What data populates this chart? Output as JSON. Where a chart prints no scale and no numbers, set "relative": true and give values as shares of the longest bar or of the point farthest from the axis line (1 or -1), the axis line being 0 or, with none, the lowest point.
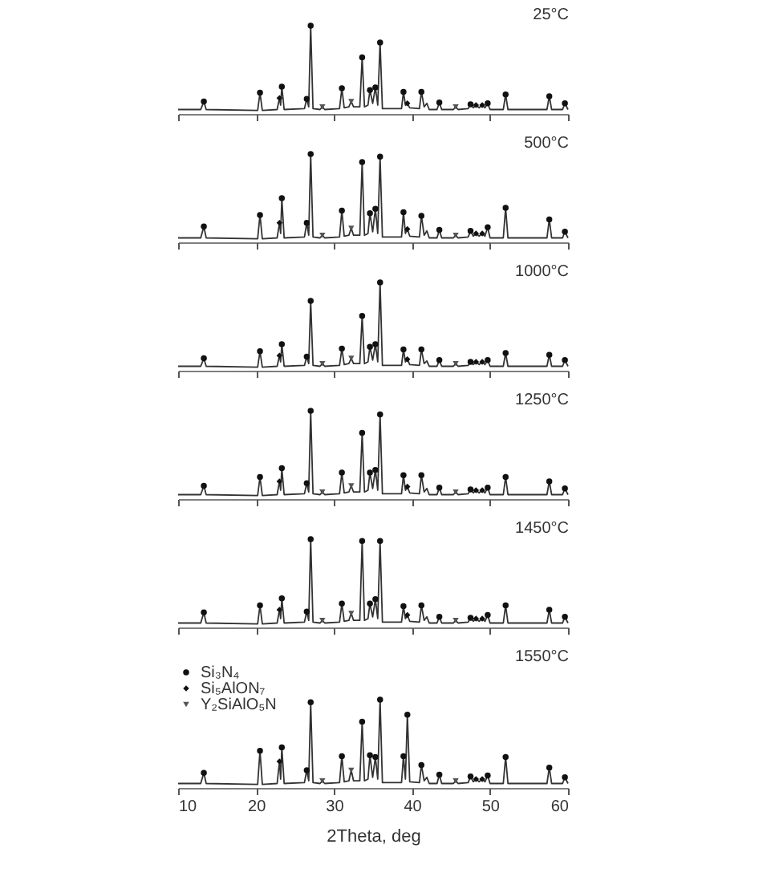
{
  "chart_data": [
    {
      "type": "line",
      "title": "25°C",
      "relative": true,
      "xlim": [
        10,
        60
      ],
      "xticks": [
        10,
        20,
        30,
        40,
        50,
        60
      ],
      "tick_labels": false,
      "x": [
        10,
        12.9,
        13.3,
        13.6,
        20.2,
        20.5,
        20.8,
        22.7,
        23.0,
        23.15,
        23.3,
        23.6,
        26.2,
        26.5,
        26.75,
        27.0,
        27.3,
        28.2,
        28.5,
        28.8,
        30.7,
        31.0,
        31.3,
        31.9,
        32.2,
        32.5,
        33.3,
        33.6,
        33.9,
        34.35,
        34.6,
        34.95,
        35.3,
        35.6,
        35.9,
        36.2,
        38.65,
        38.9,
        39.15,
        39.4,
        39.7,
        40.95,
        41.2,
        41.55,
        41.9,
        42.2,
        43.2,
        43.5,
        43.8,
        45.3,
        45.6,
        45.9,
        47.2,
        47.5,
        47.85,
        48.2,
        48.6,
        49.0,
        49.35,
        49.7,
        50.0,
        51.7,
        52.0,
        52.3,
        57.3,
        57.6,
        57.9,
        59.3,
        59.6,
        60
      ],
      "series": [
        {
          "color": "#333333",
          "values": [
            0.05,
            0.05,
            0.14,
            0.05,
            0.04,
            0.24,
            0.04,
            0.05,
            0.18,
            0.1,
            0.31,
            0.05,
            0.06,
            0.17,
            0.08,
            1.0,
            0.06,
            0.05,
            0.08,
            0.05,
            0.06,
            0.29,
            0.07,
            0.08,
            0.14,
            0.08,
            0.08,
            0.64,
            0.08,
            0.1,
            0.27,
            0.12,
            0.3,
            0.1,
            0.81,
            0.06,
            0.06,
            0.25,
            0.1,
            0.12,
            0.07,
            0.06,
            0.25,
            0.08,
            0.12,
            0.05,
            0.05,
            0.13,
            0.05,
            0.05,
            0.08,
            0.05,
            0.06,
            0.11,
            0.07,
            0.1,
            0.07,
            0.1,
            0.07,
            0.12,
            0.05,
            0.05,
            0.22,
            0.05,
            0.05,
            0.2,
            0.05,
            0.05,
            0.12,
            0.05
          ]
        },
        {
          "type": "scatter",
          "marker": "circle",
          "color": "#111111",
          "x": [
            13.3,
            20.5,
            23.3,
            26.5,
            27.0,
            31.0,
            33.6,
            34.6,
            35.3,
            35.9,
            38.9,
            41.2,
            43.5,
            47.5,
            49.7,
            52.0,
            57.6,
            59.6
          ],
          "values": [
            0.14,
            0.24,
            0.31,
            0.17,
            1.0,
            0.29,
            0.64,
            0.27,
            0.3,
            0.81,
            0.25,
            0.25,
            0.13,
            0.11,
            0.12,
            0.22,
            0.2,
            0.12
          ]
        },
        {
          "type": "scatter",
          "marker": "diamond",
          "color": "#111111",
          "x": [
            23.0,
            39.4,
            48.2,
            49.0
          ],
          "values": [
            0.18,
            0.12,
            0.1,
            0.1
          ]
        },
        {
          "type": "scatter",
          "marker": "triangle",
          "color": "#555555",
          "x": [
            28.5,
            32.2,
            45.6
          ],
          "values": [
            0.08,
            0.14,
            0.08
          ]
        }
      ]
    },
    {
      "type": "line",
      "title": "500°C",
      "relative": true,
      "xlim": [
        10,
        60
      ],
      "xticks": [
        10,
        20,
        30,
        40,
        50,
        60
      ],
      "tick_labels": false,
      "x": [
        10,
        12.9,
        13.3,
        13.6,
        20.2,
        20.5,
        20.8,
        22.7,
        23.0,
        23.15,
        23.3,
        23.6,
        26.2,
        26.5,
        26.75,
        27.0,
        27.3,
        28.2,
        28.5,
        28.8,
        30.7,
        31.0,
        31.3,
        31.9,
        32.2,
        32.5,
        33.3,
        33.6,
        33.9,
        34.35,
        34.6,
        34.95,
        35.3,
        35.6,
        35.9,
        36.2,
        38.65,
        38.9,
        39.15,
        39.4,
        39.7,
        40.95,
        41.2,
        41.55,
        41.9,
        42.2,
        43.2,
        43.5,
        43.8,
        45.3,
        45.6,
        45.9,
        47.2,
        47.5,
        47.85,
        48.2,
        48.6,
        49.0,
        49.35,
        49.7,
        50.0,
        51.7,
        52.0,
        52.3,
        57.3,
        57.6,
        57.9,
        59.3,
        59.6,
        60
      ],
      "series": [
        {
          "color": "#333333",
          "values": [
            0.05,
            0.05,
            0.18,
            0.05,
            0.04,
            0.31,
            0.04,
            0.05,
            0.22,
            0.1,
            0.5,
            0.05,
            0.06,
            0.22,
            0.08,
            1.0,
            0.06,
            0.05,
            0.08,
            0.05,
            0.06,
            0.36,
            0.07,
            0.08,
            0.16,
            0.08,
            0.08,
            0.91,
            0.08,
            0.1,
            0.33,
            0.12,
            0.38,
            0.1,
            0.97,
            0.06,
            0.06,
            0.34,
            0.1,
            0.15,
            0.07,
            0.06,
            0.3,
            0.08,
            0.13,
            0.05,
            0.05,
            0.14,
            0.05,
            0.05,
            0.08,
            0.05,
            0.06,
            0.13,
            0.07,
            0.1,
            0.07,
            0.1,
            0.07,
            0.17,
            0.05,
            0.05,
            0.39,
            0.05,
            0.05,
            0.26,
            0.05,
            0.05,
            0.12,
            0.05
          ]
        },
        {
          "type": "scatter",
          "marker": "circle",
          "color": "#111111",
          "x": [
            13.3,
            20.5,
            23.3,
            26.5,
            27.0,
            31.0,
            33.6,
            34.6,
            35.3,
            35.9,
            38.9,
            41.2,
            43.5,
            47.5,
            49.7,
            52.0,
            57.6,
            59.6
          ],
          "values": [
            0.18,
            0.31,
            0.5,
            0.22,
            1.0,
            0.36,
            0.91,
            0.33,
            0.38,
            0.97,
            0.34,
            0.3,
            0.14,
            0.13,
            0.17,
            0.39,
            0.26,
            0.12
          ]
        },
        {
          "type": "scatter",
          "marker": "diamond",
          "color": "#111111",
          "x": [
            23.0,
            39.4,
            48.2,
            49.0
          ],
          "values": [
            0.22,
            0.15,
            0.1,
            0.1
          ]
        },
        {
          "type": "scatter",
          "marker": "triangle",
          "color": "#555555",
          "x": [
            28.5,
            32.2,
            45.6
          ],
          "values": [
            0.08,
            0.16,
            0.08
          ]
        }
      ]
    },
    {
      "type": "line",
      "title": "1000°C",
      "relative": true,
      "xlim": [
        10,
        60
      ],
      "xticks": [
        10,
        20,
        30,
        40,
        50,
        60
      ],
      "tick_labels": false,
      "x": [
        10,
        12.9,
        13.3,
        13.6,
        20.2,
        20.5,
        20.8,
        22.7,
        23.0,
        23.15,
        23.3,
        23.6,
        26.2,
        26.5,
        26.75,
        27.0,
        27.3,
        28.2,
        28.5,
        28.8,
        30.7,
        31.0,
        31.3,
        31.9,
        32.2,
        32.5,
        33.3,
        33.6,
        33.9,
        34.35,
        34.6,
        34.95,
        35.3,
        35.6,
        35.9,
        36.2,
        38.65,
        38.9,
        39.15,
        39.4,
        39.7,
        40.95,
        41.2,
        41.55,
        41.9,
        42.2,
        43.2,
        43.5,
        43.8,
        45.3,
        45.6,
        45.9,
        47.2,
        47.5,
        47.85,
        48.2,
        48.6,
        49.0,
        49.35,
        49.7,
        50.0,
        51.7,
        52.0,
        52.3,
        57.3,
        57.6,
        57.9,
        59.3,
        59.6,
        60
      ],
      "series": [
        {
          "color": "#333333",
          "values": [
            0.05,
            0.05,
            0.14,
            0.05,
            0.04,
            0.22,
            0.04,
            0.05,
            0.17,
            0.1,
            0.3,
            0.05,
            0.06,
            0.16,
            0.08,
            0.79,
            0.06,
            0.05,
            0.08,
            0.05,
            0.06,
            0.25,
            0.07,
            0.08,
            0.14,
            0.08,
            0.08,
            0.62,
            0.08,
            0.1,
            0.27,
            0.12,
            0.3,
            0.1,
            1.0,
            0.06,
            0.06,
            0.24,
            0.1,
            0.13,
            0.07,
            0.06,
            0.24,
            0.08,
            0.11,
            0.05,
            0.05,
            0.12,
            0.05,
            0.05,
            0.08,
            0.05,
            0.06,
            0.1,
            0.07,
            0.1,
            0.07,
            0.1,
            0.07,
            0.12,
            0.05,
            0.05,
            0.2,
            0.05,
            0.05,
            0.18,
            0.05,
            0.05,
            0.12,
            0.05
          ]
        },
        {
          "type": "scatter",
          "marker": "circle",
          "color": "#111111",
          "x": [
            13.3,
            20.5,
            23.3,
            26.5,
            27.0,
            31.0,
            33.6,
            34.6,
            35.3,
            35.9,
            38.9,
            41.2,
            43.5,
            47.5,
            49.7,
            52.0,
            57.6,
            59.6
          ],
          "values": [
            0.14,
            0.22,
            0.3,
            0.16,
            0.79,
            0.25,
            0.62,
            0.27,
            0.3,
            1.0,
            0.24,
            0.24,
            0.12,
            0.1,
            0.12,
            0.2,
            0.18,
            0.12
          ]
        },
        {
          "type": "scatter",
          "marker": "diamond",
          "color": "#111111",
          "x": [
            23.0,
            39.4,
            48.2,
            49.0
          ],
          "values": [
            0.17,
            0.13,
            0.1,
            0.1
          ]
        },
        {
          "type": "scatter",
          "marker": "triangle",
          "color": "#555555",
          "x": [
            28.5,
            32.2,
            45.6
          ],
          "values": [
            0.08,
            0.14,
            0.08
          ]
        }
      ]
    },
    {
      "type": "line",
      "title": "1250°C",
      "relative": true,
      "xlim": [
        10,
        60
      ],
      "xticks": [
        10,
        20,
        30,
        40,
        50,
        60
      ],
      "tick_labels": false,
      "x": [
        10,
        12.9,
        13.3,
        13.6,
        20.2,
        20.5,
        20.8,
        22.7,
        23.0,
        23.15,
        23.3,
        23.6,
        26.2,
        26.5,
        26.75,
        27.0,
        27.3,
        28.2,
        28.5,
        28.8,
        30.7,
        31.0,
        31.3,
        31.9,
        32.2,
        32.5,
        33.3,
        33.6,
        33.9,
        34.35,
        34.6,
        34.95,
        35.3,
        35.6,
        35.9,
        36.2,
        38.65,
        38.9,
        39.15,
        39.4,
        39.7,
        40.95,
        41.2,
        41.55,
        41.9,
        42.2,
        43.2,
        43.5,
        43.8,
        45.3,
        45.6,
        45.9,
        47.2,
        47.5,
        47.85,
        48.2,
        48.6,
        49.0,
        49.35,
        49.7,
        50.0,
        51.7,
        52.0,
        52.3,
        57.3,
        57.6,
        57.9,
        59.3,
        59.6,
        60
      ],
      "series": [
        {
          "color": "#333333",
          "values": [
            0.05,
            0.05,
            0.15,
            0.05,
            0.04,
            0.25,
            0.04,
            0.05,
            0.2,
            0.1,
            0.35,
            0.05,
            0.06,
            0.18,
            0.08,
            1.0,
            0.06,
            0.05,
            0.08,
            0.05,
            0.06,
            0.3,
            0.07,
            0.08,
            0.15,
            0.08,
            0.08,
            0.75,
            0.08,
            0.1,
            0.3,
            0.12,
            0.33,
            0.1,
            0.96,
            0.06,
            0.06,
            0.27,
            0.1,
            0.14,
            0.07,
            0.06,
            0.27,
            0.08,
            0.12,
            0.05,
            0.05,
            0.13,
            0.05,
            0.05,
            0.08,
            0.05,
            0.06,
            0.11,
            0.07,
            0.1,
            0.07,
            0.1,
            0.07,
            0.13,
            0.05,
            0.05,
            0.25,
            0.05,
            0.05,
            0.2,
            0.05,
            0.05,
            0.12,
            0.05
          ]
        },
        {
          "type": "scatter",
          "marker": "circle",
          "color": "#111111",
          "x": [
            13.3,
            20.5,
            23.3,
            26.5,
            27.0,
            31.0,
            33.6,
            34.6,
            35.3,
            35.9,
            38.9,
            41.2,
            43.5,
            47.5,
            49.7,
            52.0,
            57.6,
            59.6
          ],
          "values": [
            0.15,
            0.25,
            0.35,
            0.18,
            1.0,
            0.3,
            0.75,
            0.3,
            0.33,
            0.96,
            0.27,
            0.27,
            0.13,
            0.11,
            0.13,
            0.25,
            0.2,
            0.12
          ]
        },
        {
          "type": "scatter",
          "marker": "diamond",
          "color": "#111111",
          "x": [
            23.0,
            39.4,
            48.2,
            49.0
          ],
          "values": [
            0.2,
            0.14,
            0.1,
            0.1
          ]
        },
        {
          "type": "scatter",
          "marker": "triangle",
          "color": "#555555",
          "x": [
            28.5,
            32.2,
            45.6
          ],
          "values": [
            0.08,
            0.15,
            0.08
          ]
        }
      ]
    },
    {
      "type": "line",
      "title": "1450°C",
      "relative": true,
      "xlim": [
        10,
        60
      ],
      "xticks": [
        10,
        20,
        30,
        40,
        50,
        60
      ],
      "tick_labels": false,
      "x": [
        10,
        12.9,
        13.3,
        13.6,
        20.2,
        20.5,
        20.8,
        22.7,
        23.0,
        23.15,
        23.3,
        23.6,
        26.2,
        26.5,
        26.75,
        27.0,
        27.3,
        28.2,
        28.5,
        28.8,
        30.7,
        31.0,
        31.3,
        31.9,
        32.2,
        32.5,
        33.3,
        33.6,
        33.9,
        34.35,
        34.6,
        34.95,
        35.3,
        35.6,
        35.9,
        36.2,
        38.65,
        38.9,
        39.15,
        39.4,
        39.7,
        40.95,
        41.2,
        41.55,
        41.9,
        42.2,
        43.2,
        43.5,
        43.8,
        45.3,
        45.6,
        45.9,
        47.2,
        47.5,
        47.85,
        48.2,
        48.6,
        49.0,
        49.35,
        49.7,
        50.0,
        51.7,
        52.0,
        52.3,
        57.3,
        57.6,
        57.9,
        59.3,
        59.6,
        60
      ],
      "series": [
        {
          "color": "#333333",
          "values": [
            0.05,
            0.05,
            0.17,
            0.05,
            0.04,
            0.25,
            0.04,
            0.05,
            0.2,
            0.1,
            0.33,
            0.05,
            0.06,
            0.18,
            0.08,
            1.0,
            0.06,
            0.05,
            0.08,
            0.05,
            0.06,
            0.27,
            0.07,
            0.08,
            0.16,
            0.08,
            0.08,
            0.98,
            0.08,
            0.1,
            0.27,
            0.12,
            0.32,
            0.1,
            0.98,
            0.06,
            0.06,
            0.24,
            0.1,
            0.14,
            0.07,
            0.06,
            0.25,
            0.08,
            0.12,
            0.05,
            0.05,
            0.12,
            0.05,
            0.05,
            0.08,
            0.05,
            0.06,
            0.11,
            0.07,
            0.1,
            0.07,
            0.1,
            0.07,
            0.14,
            0.05,
            0.05,
            0.25,
            0.05,
            0.05,
            0.2,
            0.05,
            0.05,
            0.12,
            0.05
          ]
        },
        {
          "type": "scatter",
          "marker": "circle",
          "color": "#111111",
          "x": [
            13.3,
            20.5,
            23.3,
            26.5,
            27.0,
            31.0,
            33.6,
            34.6,
            35.3,
            35.9,
            38.9,
            41.2,
            43.5,
            47.5,
            49.7,
            52.0,
            57.6,
            59.6
          ],
          "values": [
            0.17,
            0.25,
            0.33,
            0.18,
            1.0,
            0.27,
            0.98,
            0.27,
            0.32,
            0.98,
            0.24,
            0.25,
            0.12,
            0.11,
            0.14,
            0.25,
            0.2,
            0.12
          ]
        },
        {
          "type": "scatter",
          "marker": "diamond",
          "color": "#111111",
          "x": [
            23.0,
            39.4,
            48.2,
            49.0
          ],
          "values": [
            0.2,
            0.14,
            0.1,
            0.1
          ]
        },
        {
          "type": "scatter",
          "marker": "triangle",
          "color": "#555555",
          "x": [
            28.5,
            32.2,
            45.6
          ],
          "values": [
            0.08,
            0.16,
            0.08
          ]
        }
      ]
    },
    {
      "type": "line",
      "title": "1550°C",
      "relative": true,
      "xlim": [
        10,
        60
      ],
      "xticks": [
        10,
        20,
        30,
        40,
        50,
        60
      ],
      "xlabel": "2Theta, deg",
      "legend": "top left",
      "x": [
        10,
        12.9,
        13.3,
        13.6,
        20.2,
        20.5,
        20.8,
        22.7,
        23.0,
        23.15,
        23.3,
        23.6,
        26.2,
        26.5,
        26.75,
        27.0,
        27.3,
        28.2,
        28.5,
        28.8,
        30.7,
        31.0,
        31.3,
        31.9,
        32.2,
        32.5,
        33.3,
        33.6,
        33.9,
        34.35,
        34.6,
        34.95,
        35.3,
        35.6,
        35.9,
        36.2,
        38.65,
        38.9,
        39.15,
        39.4,
        39.7,
        40.95,
        41.2,
        41.55,
        41.9,
        42.2,
        43.2,
        43.5,
        43.8,
        45.3,
        45.6,
        45.9,
        47.2,
        47.5,
        47.85,
        48.2,
        48.6,
        49.0,
        49.35,
        49.7,
        50.0,
        51.7,
        52.0,
        52.3,
        57.3,
        57.6,
        57.9,
        59.3,
        59.6,
        60
      ],
      "series": [
        {
          "color": "#333333",
          "values": [
            0.05,
            0.05,
            0.17,
            0.05,
            0.04,
            0.42,
            0.04,
            0.05,
            0.3,
            0.1,
            0.46,
            0.05,
            0.06,
            0.2,
            0.08,
            0.97,
            0.06,
            0.05,
            0.08,
            0.05,
            0.06,
            0.36,
            0.07,
            0.08,
            0.2,
            0.08,
            0.08,
            0.75,
            0.08,
            0.1,
            0.37,
            0.12,
            0.35,
            0.1,
            1.0,
            0.06,
            0.06,
            0.36,
            0.1,
            0.83,
            0.07,
            0.06,
            0.26,
            0.08,
            0.12,
            0.05,
            0.05,
            0.15,
            0.05,
            0.05,
            0.08,
            0.05,
            0.06,
            0.13,
            0.07,
            0.1,
            0.07,
            0.1,
            0.07,
            0.14,
            0.05,
            0.05,
            0.35,
            0.05,
            0.05,
            0.23,
            0.05,
            0.05,
            0.12,
            0.05
          ]
        },
        {
          "type": "scatter",
          "marker": "circle",
          "color": "#111111",
          "name": "Si₃N₄",
          "x": [
            13.3,
            20.5,
            23.3,
            26.5,
            27.0,
            31.0,
            33.6,
            34.6,
            35.3,
            35.9,
            38.9,
            39.4,
            41.2,
            43.5,
            47.5,
            49.7,
            52.0,
            57.6,
            59.6
          ],
          "values": [
            0.17,
            0.42,
            0.46,
            0.2,
            0.97,
            0.36,
            0.75,
            0.37,
            0.35,
            1.0,
            0.36,
            0.83,
            0.26,
            0.15,
            0.13,
            0.14,
            0.35,
            0.23,
            0.12
          ]
        },
        {
          "type": "scatter",
          "marker": "diamond",
          "color": "#111111",
          "name": "Si₅AlON₇",
          "x": [
            23.0,
            48.2,
            49.0
          ],
          "values": [
            0.3,
            0.1,
            0.1
          ]
        },
        {
          "type": "scatter",
          "marker": "triangle",
          "color": "#555555",
          "name": "Y₂SiAlO₅N",
          "x": [
            28.5,
            32.2,
            45.6
          ],
          "values": [
            0.08,
            0.2,
            0.08
          ]
        }
      ]
    }
  ]
}
